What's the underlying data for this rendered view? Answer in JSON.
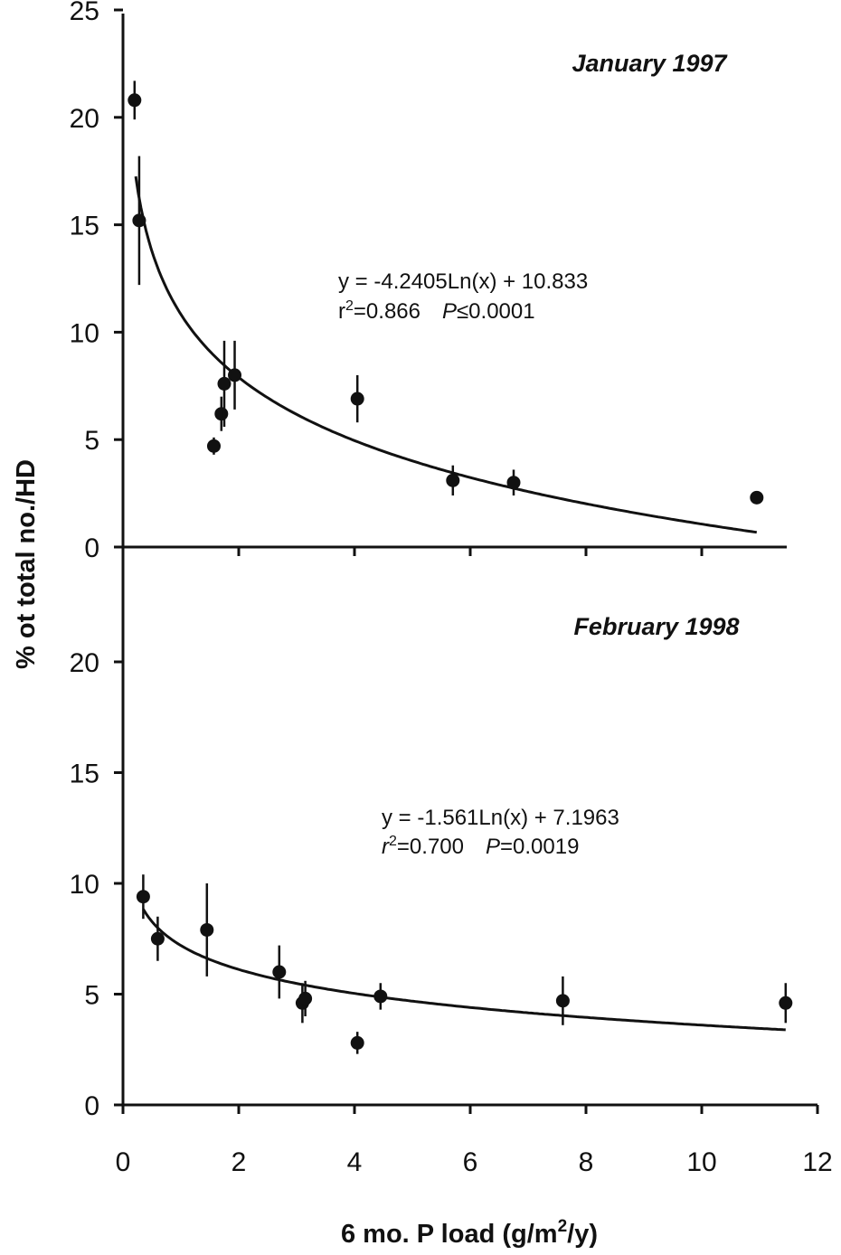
{
  "colors": {
    "ink": "#111111",
    "background": "#ffffff"
  },
  "chart_data": {
    "type": "scatter",
    "ylabel": "% ot total no./HD",
    "xlabel_main": "6 mo. P load (g/m",
    "xlabel_sup": "2",
    "xlabel_tail": "/y)",
    "xlim": [
      0,
      12
    ],
    "xticks": [
      0,
      2,
      4,
      6,
      8,
      10,
      12
    ],
    "grid": false,
    "panels": [
      {
        "title": "January 1997",
        "ylim": [
          0,
          25
        ],
        "yticks": [
          0,
          5,
          10,
          15,
          20,
          25
        ],
        "equation": "y = -4.2405Ln(x) + 10.833",
        "stats": {
          "r_label": "r",
          "r_sup": "2",
          "r_value": "=0.866",
          "p_label": "P",
          "p_value": "≤0.0001"
        },
        "fit": {
          "type": "log",
          "a": -4.2405,
          "b": 10.833,
          "x_range": [
            0.22,
            10.95
          ]
        },
        "points": [
          {
            "x": 0.2,
            "y": 20.8,
            "err": 0.9
          },
          {
            "x": 0.28,
            "y": 15.2,
            "err": 3.0
          },
          {
            "x": 1.57,
            "y": 4.7,
            "err": 0.4
          },
          {
            "x": 1.7,
            "y": 6.2,
            "err": 0.8
          },
          {
            "x": 1.75,
            "y": 7.6,
            "err": 2.0
          },
          {
            "x": 1.93,
            "y": 8.0,
            "err": 1.6
          },
          {
            "x": 4.05,
            "y": 6.9,
            "err": 1.1
          },
          {
            "x": 5.7,
            "y": 3.1,
            "err": 0.7
          },
          {
            "x": 6.75,
            "y": 3.0,
            "err": 0.6
          },
          {
            "x": 10.95,
            "y": 2.3,
            "err": 0.2
          }
        ]
      },
      {
        "title": "February 1998",
        "ylim": [
          0,
          25
        ],
        "yticks": [
          0,
          5,
          10,
          15,
          20
        ],
        "equation": "y = -1.561Ln(x) + 7.1963",
        "stats": {
          "r_label": "r",
          "r_sup": "2",
          "r_value": "=0.700",
          "p_label": "P",
          "p_value": "=0.0019"
        },
        "fit": {
          "type": "log",
          "a": -1.561,
          "b": 7.1963,
          "x_range": [
            0.35,
            11.45
          ]
        },
        "points": [
          {
            "x": 0.35,
            "y": 9.4,
            "err": 1.0
          },
          {
            "x": 0.6,
            "y": 7.5,
            "err": 1.0
          },
          {
            "x": 1.45,
            "y": 7.9,
            "err": 2.1
          },
          {
            "x": 2.7,
            "y": 6.0,
            "err": 1.2
          },
          {
            "x": 3.1,
            "y": 4.6,
            "err": 0.9
          },
          {
            "x": 3.15,
            "y": 4.8,
            "err": 0.8
          },
          {
            "x": 4.05,
            "y": 2.8,
            "err": 0.5
          },
          {
            "x": 4.45,
            "y": 4.9,
            "err": 0.6
          },
          {
            "x": 7.6,
            "y": 4.7,
            "err": 1.1
          },
          {
            "x": 11.45,
            "y": 4.6,
            "err": 0.9
          }
        ]
      }
    ]
  }
}
